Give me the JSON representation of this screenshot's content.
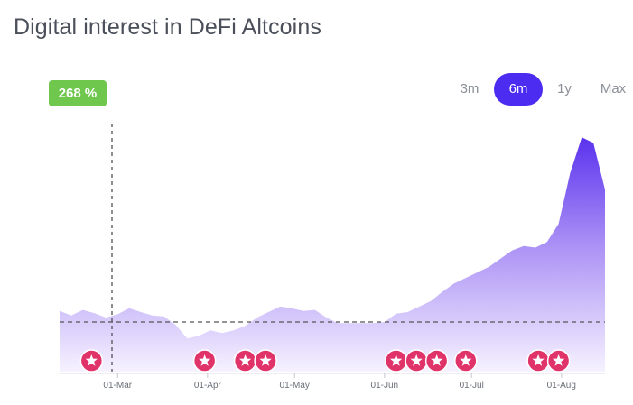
{
  "title": "Digital interest in DeFi Altcoins",
  "range_tabs": [
    {
      "label": "3m",
      "active": false
    },
    {
      "label": "6m",
      "active": true
    },
    {
      "label": "1y",
      "active": false
    },
    {
      "label": "Max",
      "active": false
    }
  ],
  "badge": {
    "label": "268 %"
  },
  "colors": {
    "accent": "#4b2cf0",
    "badge": "#6fc74d",
    "marker": "#e0336a"
  },
  "chart_data": {
    "type": "area",
    "x_ticks": [
      "01-Mar",
      "01-Apr",
      "01-May",
      "01-Jun",
      "01-Jul",
      "01-Aug"
    ],
    "baseline_value": 100,
    "ylim": [
      0,
      450
    ],
    "grid": false,
    "x": [
      "02-09",
      "02-13",
      "02-17",
      "02-21",
      "02-25",
      "03-01",
      "03-05",
      "03-09",
      "03-13",
      "03-17",
      "03-21",
      "03-25",
      "03-29",
      "04-02",
      "04-06",
      "04-10",
      "04-14",
      "04-18",
      "04-22",
      "04-26",
      "04-30",
      "05-04",
      "05-08",
      "05-12",
      "05-16",
      "05-20",
      "05-24",
      "05-28",
      "06-01",
      "06-05",
      "06-09",
      "06-13",
      "06-17",
      "06-21",
      "06-25",
      "06-29",
      "07-03",
      "07-07",
      "07-11",
      "07-15",
      "07-19",
      "07-23",
      "07-27",
      "07-31",
      "08-04",
      "08-08",
      "08-12",
      "08-16"
    ],
    "values": [
      110,
      102,
      112,
      106,
      98,
      104,
      115,
      108,
      102,
      100,
      85,
      60,
      65,
      75,
      70,
      75,
      83,
      98,
      108,
      118,
      115,
      110,
      112,
      98,
      88,
      88,
      88,
      88,
      90,
      105,
      108,
      118,
      128,
      145,
      160,
      170,
      180,
      190,
      205,
      220,
      228,
      225,
      235,
      268,
      360,
      425,
      415,
      330
    ],
    "markers": [
      "02-20",
      "03-31",
      "04-14",
      "04-21",
      "06-05",
      "06-12",
      "06-19",
      "06-29",
      "07-24",
      "07-31"
    ]
  }
}
